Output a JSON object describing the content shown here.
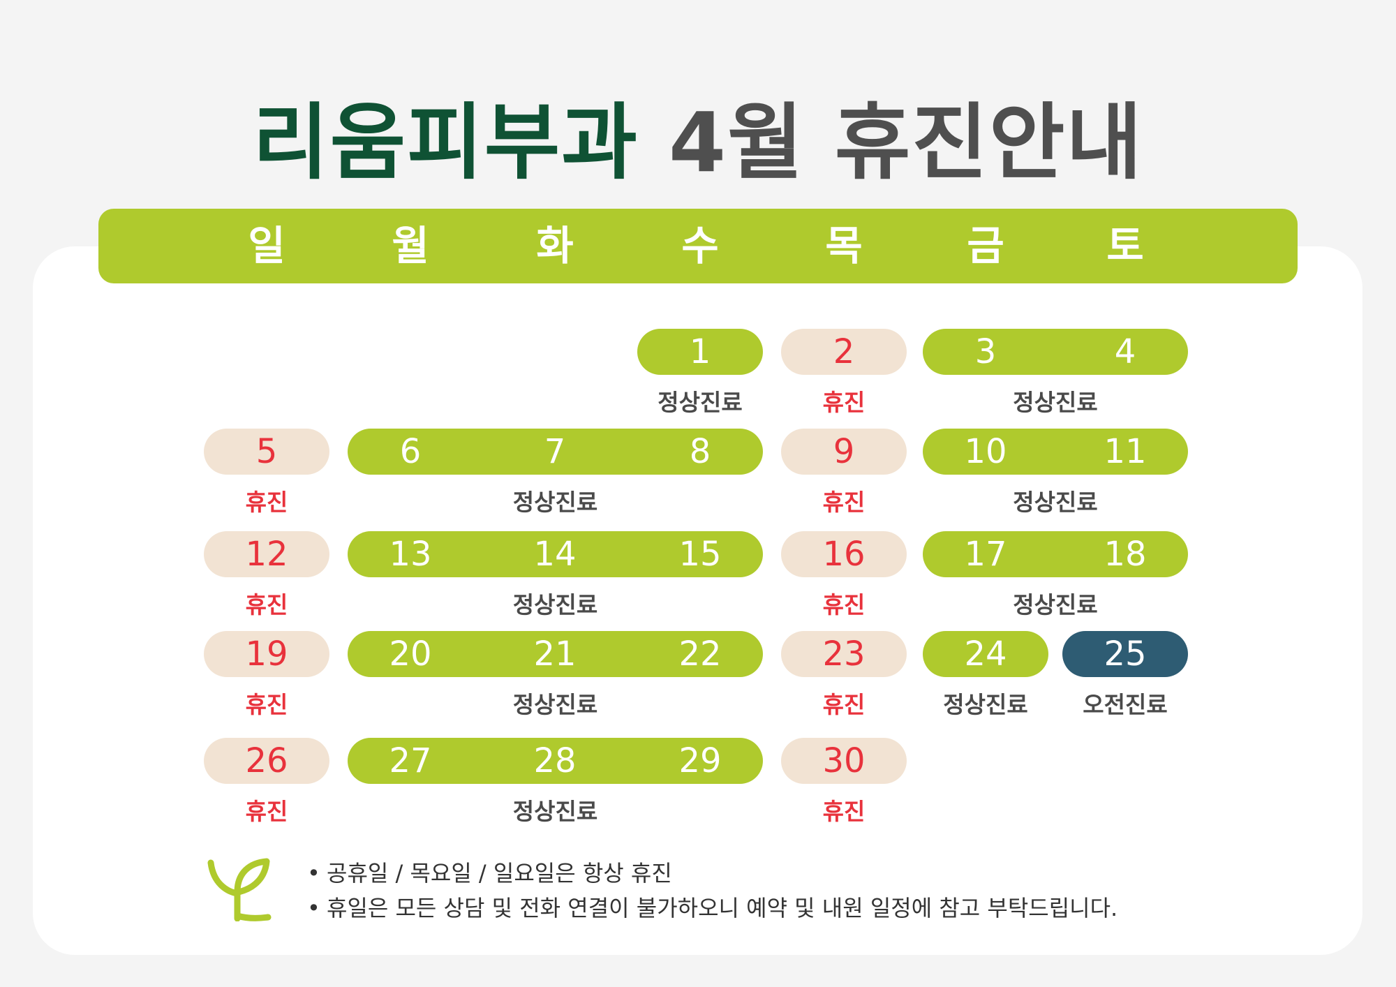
{
  "title": {
    "part1": "리움피부과",
    "part2": "4월 휴진안내"
  },
  "weekdays": [
    "일",
    "월",
    "화",
    "수",
    "목",
    "금",
    "토"
  ],
  "colors": {
    "open": "#afca2d",
    "closed": "#f2e3d3",
    "morning": "#2e5c73",
    "closed_text": "#e8323c",
    "title_green": "#0f5234"
  },
  "labels": {
    "open": "정상진료",
    "closed": "휴진",
    "morning": "오전진료"
  },
  "weeks": [
    {
      "groups": [
        {
          "type": "open",
          "days": [
            "1"
          ]
        },
        {
          "type": "closed",
          "days": [
            "2"
          ]
        },
        {
          "type": "open",
          "days": [
            "3",
            "4"
          ]
        }
      ]
    },
    {
      "groups": [
        {
          "type": "closed",
          "days": [
            "5"
          ]
        },
        {
          "type": "open",
          "days": [
            "6",
            "7",
            "8"
          ]
        },
        {
          "type": "closed",
          "days": [
            "9"
          ]
        },
        {
          "type": "open",
          "days": [
            "10",
            "11"
          ]
        }
      ]
    },
    {
      "groups": [
        {
          "type": "closed",
          "days": [
            "12"
          ]
        },
        {
          "type": "open",
          "days": [
            "13",
            "14",
            "15"
          ]
        },
        {
          "type": "closed",
          "days": [
            "16"
          ]
        },
        {
          "type": "open",
          "days": [
            "17",
            "18"
          ]
        }
      ]
    },
    {
      "groups": [
        {
          "type": "closed",
          "days": [
            "19"
          ]
        },
        {
          "type": "open",
          "days": [
            "20",
            "21",
            "22"
          ]
        },
        {
          "type": "closed",
          "days": [
            "23"
          ]
        },
        {
          "type": "open",
          "days": [
            "24"
          ]
        },
        {
          "type": "morning",
          "days": [
            "25"
          ]
        }
      ]
    },
    {
      "groups": [
        {
          "type": "closed",
          "days": [
            "26"
          ]
        },
        {
          "type": "open",
          "days": [
            "27",
            "28",
            "29"
          ]
        },
        {
          "type": "closed",
          "days": [
            "30"
          ]
        }
      ]
    }
  ],
  "notes": [
    "공휴일 / 목요일 / 일요일은 항상 휴진",
    "휴일은 모든 상담 및 전화 연결이 불가하오니 예약 및 내원 일정에 참고 부탁드립니다."
  ]
}
